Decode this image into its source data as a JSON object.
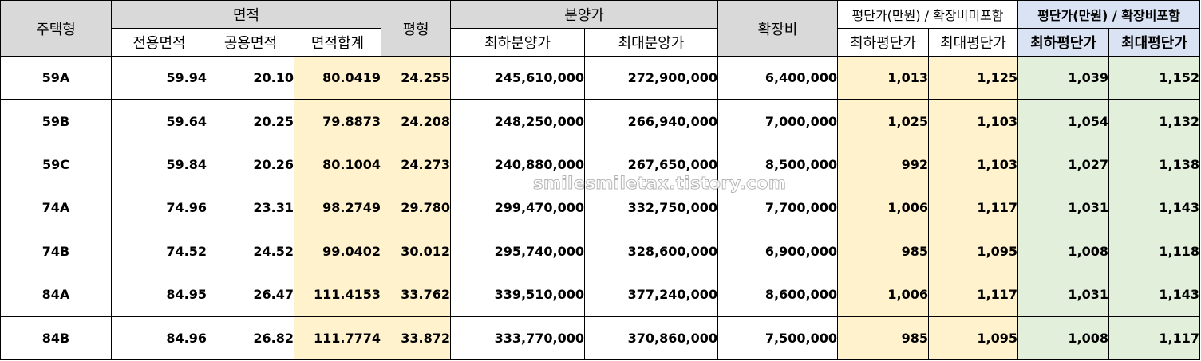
{
  "headers": {
    "housing_type": "주택형",
    "area_group": "면적",
    "area_exclusive": "전용면적",
    "area_common": "공용면적",
    "area_total": "면적합계",
    "pyeong": "평형",
    "sale_price_group": "분양가",
    "sale_price_min": "최하분양가",
    "sale_price_max": "최대분양가",
    "extension_cost": "확장비",
    "ppp_excl_group": "평단가(만원) / 확장비미포함",
    "ppp_excl_min": "최하평단가",
    "ppp_excl_max": "최대평단가",
    "ppp_incl_group": "평단가(만원) / 확장비포함",
    "ppp_incl_min": "최하평단가",
    "ppp_incl_max": "최대평단가"
  },
  "rows": [
    {
      "type": "59A",
      "exclusive": "59.94",
      "common": "20.10",
      "total": "80.0419",
      "pyeong": "24.255",
      "min_price": "245,610,000",
      "max_price": "272,900,000",
      "extension": "6,400,000",
      "excl_min": "1,013",
      "excl_max": "1,125",
      "incl_min": "1,039",
      "incl_max": "1,152"
    },
    {
      "type": "59B",
      "exclusive": "59.64",
      "common": "20.25",
      "total": "79.8873",
      "pyeong": "24.208",
      "min_price": "248,250,000",
      "max_price": "266,940,000",
      "extension": "7,000,000",
      "excl_min": "1,025",
      "excl_max": "1,103",
      "incl_min": "1,054",
      "incl_max": "1,132"
    },
    {
      "type": "59C",
      "exclusive": "59.84",
      "common": "20.26",
      "total": "80.1004",
      "pyeong": "24.273",
      "min_price": "240,880,000",
      "max_price": "267,650,000",
      "extension": "8,500,000",
      "excl_min": "992",
      "excl_max": "1,103",
      "incl_min": "1,027",
      "incl_max": "1,138"
    },
    {
      "type": "74A",
      "exclusive": "74.96",
      "common": "23.31",
      "total": "98.2749",
      "pyeong": "29.780",
      "min_price": "299,470,000",
      "max_price": "332,750,000",
      "extension": "7,700,000",
      "excl_min": "1,006",
      "excl_max": "1,117",
      "incl_min": "1,031",
      "incl_max": "1,143"
    },
    {
      "type": "74B",
      "exclusive": "74.52",
      "common": "24.52",
      "total": "99.0402",
      "pyeong": "30.012",
      "min_price": "295,740,000",
      "max_price": "328,600,000",
      "extension": "6,900,000",
      "excl_min": "985",
      "excl_max": "1,095",
      "incl_min": "1,008",
      "incl_max": "1,118"
    },
    {
      "type": "84A",
      "exclusive": "84.95",
      "common": "26.47",
      "total": "111.4153",
      "pyeong": "33.762",
      "min_price": "339,510,000",
      "max_price": "377,240,000",
      "extension": "8,600,000",
      "excl_min": "1,006",
      "excl_max": "1,117",
      "incl_min": "1,031",
      "incl_max": "1,143"
    },
    {
      "type": "84B",
      "exclusive": "84.96",
      "common": "26.82",
      "total": "111.7774",
      "pyeong": "33.872",
      "min_price": "333,770,000",
      "max_price": "370,860,000",
      "extension": "7,500,000",
      "excl_min": "985",
      "excl_max": "1,095",
      "incl_min": "1,008",
      "incl_max": "1,117"
    }
  ],
  "watermark": "smilesmiletax.tistory.com",
  "colors": {
    "header_gray": "#d9d9d9",
    "highlight_yellow": "#fff2cc",
    "highlight_green": "#e2efda",
    "header_blue": "#dae3f3"
  }
}
